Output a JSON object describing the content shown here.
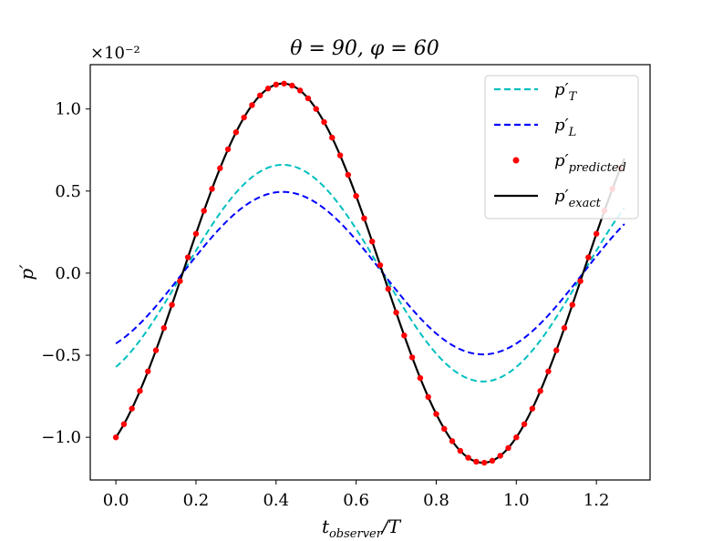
{
  "chart_data": {
    "type": "line",
    "title": "θ = 90, φ = 60",
    "xlabel": "t_observer / T",
    "ylabel": "p′",
    "scale_label": "×10⁻²",
    "xlim": [
      -0.064,
      1.334
    ],
    "ylim": [
      -1.26,
      1.27
    ],
    "x_ticks": [
      0.0,
      0.2,
      0.4,
      0.6,
      0.8,
      1.0,
      1.2
    ],
    "x_tick_labels": [
      "0.0",
      "0.2",
      "0.4",
      "0.6",
      "0.8",
      "1.0",
      "1.2"
    ],
    "y_ticks": [
      -1.0,
      -0.5,
      0.0,
      0.5,
      1.0
    ],
    "y_tick_labels": [
      "−1.0",
      "−0.5",
      "0.0",
      "0.5",
      "1.0"
    ],
    "legend_position": "top-right",
    "series": [
      {
        "name": "p'_T",
        "label_main": "p′",
        "label_sub": "T",
        "style": "dashed",
        "color": "#00BFBF",
        "model": {
          "kind": "sine",
          "amplitude": 0.66,
          "period": 1.0,
          "phase_zero_x": 0.1667
        },
        "x_range": [
          0.0,
          1.27
        ]
      },
      {
        "name": "p'_L",
        "label_main": "p′",
        "label_sub": "L",
        "style": "dashed",
        "color": "#0000FF",
        "model": {
          "kind": "sine",
          "amplitude": 0.495,
          "period": 1.0,
          "phase_zero_x": 0.1667
        },
        "x_range": [
          0.0,
          1.27
        ]
      },
      {
        "name": "p'_predicted",
        "label_main": "p′",
        "label_sub": "predicted",
        "style": "markers",
        "color": "#FF0000",
        "model": {
          "kind": "sine",
          "amplitude": 1.155,
          "period": 1.0,
          "phase_zero_x": 0.1667
        },
        "x_start": 0.0,
        "x_step": 0.02,
        "count": 64
      },
      {
        "name": "p'_exact",
        "label_main": "p′",
        "label_sub": "exact",
        "style": "solid",
        "color": "#000000",
        "model": {
          "kind": "sine",
          "amplitude": 1.155,
          "period": 1.0,
          "phase_zero_x": 0.1667
        },
        "x_range": [
          0.0,
          1.27
        ]
      }
    ]
  }
}
